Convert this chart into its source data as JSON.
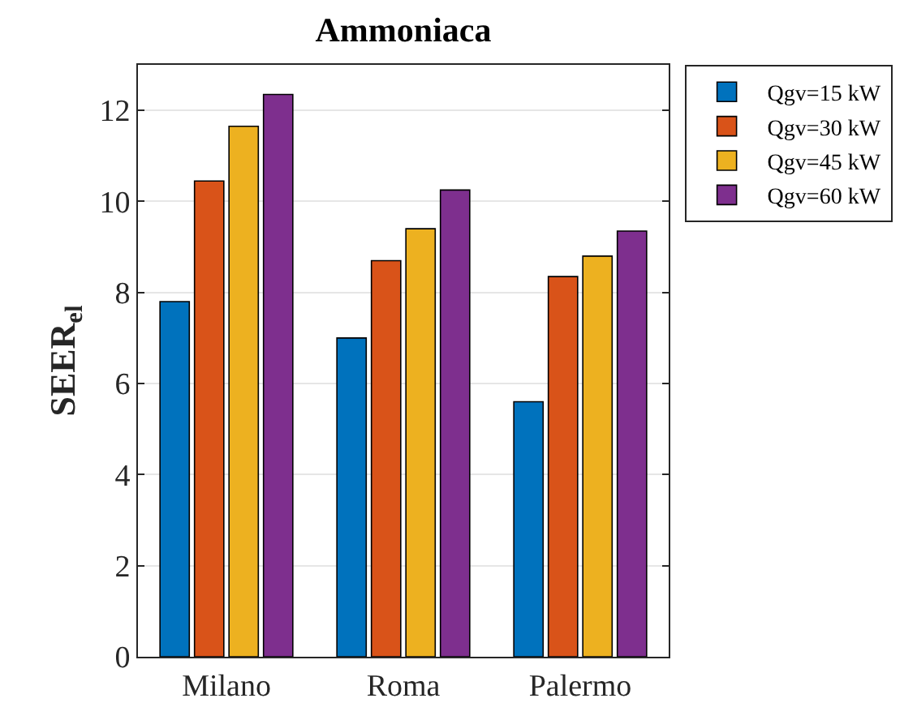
{
  "chart_data": {
    "type": "bar",
    "title": "Ammoniaca",
    "ylabel": "SEER$_{el}$",
    "categories": [
      "Milano",
      "Roma",
      "Palermo"
    ],
    "series": [
      {
        "name": "Qgv=15 kW",
        "color": "#0072bd",
        "values": [
          7.8,
          7.0,
          5.6
        ]
      },
      {
        "name": "Qgv=30 kW",
        "color": "#d95319",
        "values": [
          10.45,
          8.7,
          8.35
        ]
      },
      {
        "name": "Qgv=45 kW",
        "color": "#edb120",
        "values": [
          11.65,
          9.4,
          8.8
        ]
      },
      {
        "name": "Qgv=60 kW",
        "color": "#7e2f8e",
        "values": [
          12.35,
          10.25,
          9.35
        ]
      }
    ],
    "ylim": [
      0,
      13
    ],
    "yticks": [
      0,
      2,
      4,
      6,
      8,
      10,
      12
    ],
    "grid": "y",
    "legend": "top right"
  }
}
